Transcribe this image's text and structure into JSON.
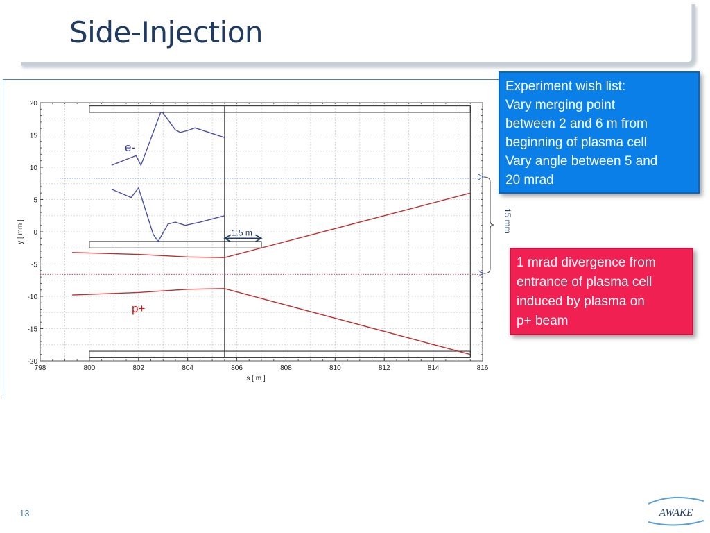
{
  "slide": {
    "title": "Side-Injection",
    "page_number": "13",
    "logo_text": "AWAKE"
  },
  "callouts": {
    "wish_list": [
      "Experiment wish list:",
      "Vary merging point",
      "between 2 and 6 m from",
      "beginning of plasma cell",
      "Vary angle between 5 and",
      "20 mrad"
    ],
    "divergence": [
      "1 mrad divergence from",
      "entrance of plasma cell",
      "induced by plasma on",
      "p+ beam"
    ],
    "colors": {
      "wish_list_bg": "#0a7fe8",
      "divergence_bg": "#f02053"
    }
  },
  "annotations": {
    "electron_label": "e-",
    "proton_label": "p+",
    "length_label": "1.5 m",
    "offset_label": "15 mm"
  },
  "chart_data": {
    "type": "line",
    "title": "",
    "xlabel": "s [ m ]",
    "ylabel": "y [ mm ]",
    "xlim": [
      798,
      816
    ],
    "ylim": [
      -20,
      20
    ],
    "x_ticks": [
      798,
      800,
      802,
      804,
      806,
      808,
      810,
      812,
      814,
      816
    ],
    "y_ticks": [
      20,
      15,
      10,
      5,
      0,
      -5,
      -10,
      -15,
      -20
    ],
    "grid": true,
    "colors": {
      "electron": "#4a50a8",
      "proton": "#c03030",
      "dotted_blue": "#1f4fa0",
      "dotted_red": "#e04060"
    },
    "series": [
      {
        "group": "electron",
        "points": [
          [
            800.9,
            10.3
          ],
          [
            801.7,
            11.5
          ],
          [
            801.9,
            11.8
          ],
          [
            802.1,
            10.3
          ],
          [
            802.9,
            18.5
          ],
          [
            803.0,
            18.4
          ],
          [
            803.5,
            15.8
          ],
          [
            803.7,
            15.4
          ],
          [
            804.0,
            15.7
          ],
          [
            804.3,
            16.1
          ],
          [
            805.5,
            14.6
          ]
        ]
      },
      {
        "group": "electron",
        "points": [
          [
            800.9,
            6.6
          ],
          [
            801.7,
            5.3
          ],
          [
            802.0,
            6.8
          ],
          [
            802.6,
            -0.4
          ],
          [
            802.8,
            -1.5
          ],
          [
            803.2,
            1.2
          ],
          [
            803.5,
            1.5
          ],
          [
            803.9,
            1.0
          ],
          [
            804.5,
            1.5
          ],
          [
            805.5,
            2.5
          ]
        ]
      },
      {
        "group": "proton",
        "points": [
          [
            799.3,
            -3.2
          ],
          [
            802.0,
            -3.5
          ],
          [
            804.0,
            -3.9
          ],
          [
            805.5,
            -4.0
          ],
          [
            815.5,
            6.0
          ]
        ]
      },
      {
        "group": "proton",
        "points": [
          [
            799.3,
            -9.8
          ],
          [
            802.0,
            -9.4
          ],
          [
            804.0,
            -8.9
          ],
          [
            805.5,
            -8.8
          ],
          [
            815.5,
            -19.0
          ]
        ]
      }
    ],
    "reference_lines": {
      "blue_y": 8.3,
      "red_y": -6.6
    },
    "rects": [
      {
        "x0": 800.0,
        "x1": 815.5,
        "y0": 18.5,
        "y1": 19.5
      },
      {
        "x0": 800.0,
        "x1": 815.5,
        "y0": -18.5,
        "y1": -19.5
      },
      {
        "x0": 800.0,
        "x1": 807.0,
        "y0": -1.5,
        "y1": -2.5
      }
    ],
    "vertical_lines": [
      805.5,
      815.5
    ],
    "arrow_x": [
      805.5,
      807.0
    ],
    "arrow_y": -1.0
  }
}
